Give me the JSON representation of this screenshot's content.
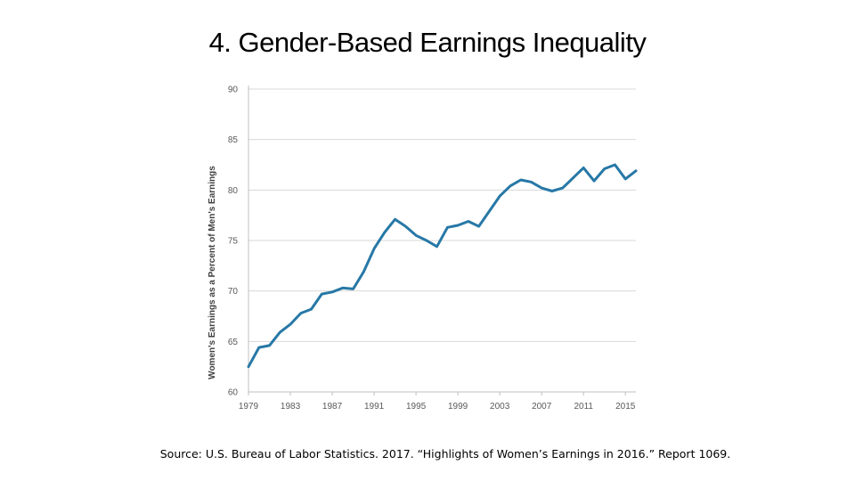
{
  "slide": {
    "title": "4. Gender-Based Earnings Inequality",
    "source": "Source: U.S. Bureau of Labor Statistics. 2017. “Highlights of Women’s Earnings in 2016.” Report 1069."
  },
  "chart_data": {
    "type": "line",
    "title": "",
    "xlabel": "",
    "ylabel": "Women's Earnings as a Percent of Men's Earnings",
    "x": [
      1979,
      1980,
      1981,
      1982,
      1983,
      1984,
      1985,
      1986,
      1987,
      1988,
      1989,
      1990,
      1991,
      1992,
      1993,
      1994,
      1995,
      1996,
      1997,
      1998,
      1999,
      2000,
      2001,
      2002,
      2003,
      2004,
      2005,
      2006,
      2007,
      2008,
      2009,
      2010,
      2011,
      2012,
      2013,
      2014,
      2015,
      2016
    ],
    "series": [
      {
        "values": [
          62.5,
          64.4,
          64.6,
          65.9,
          66.7,
          67.8,
          68.2,
          69.7,
          69.9,
          70.3,
          70.2,
          71.9,
          74.2,
          75.8,
          77.1,
          76.4,
          75.5,
          75.0,
          74.4,
          76.3,
          76.5,
          76.9,
          76.4,
          77.9,
          79.4,
          80.4,
          81.0,
          80.8,
          80.2,
          79.9,
          80.2,
          81.2,
          82.2,
          80.9,
          82.1,
          82.5,
          81.1,
          81.9
        ]
      }
    ],
    "x_ticks": [
      "1979",
      "1983",
      "1987",
      "1991",
      "1995",
      "1999",
      "2003",
      "2007",
      "2011",
      "2015"
    ],
    "y_ticks": [
      "60",
      "65",
      "70",
      "75",
      "80",
      "85",
      "90"
    ],
    "ylim": [
      60,
      90
    ],
    "xlim": [
      1979,
      2016
    ],
    "grid": "horizontal",
    "colors": {
      "line": "#2778A6",
      "grid": "#D9D9D9",
      "axis": "#BFBFBF"
    }
  }
}
